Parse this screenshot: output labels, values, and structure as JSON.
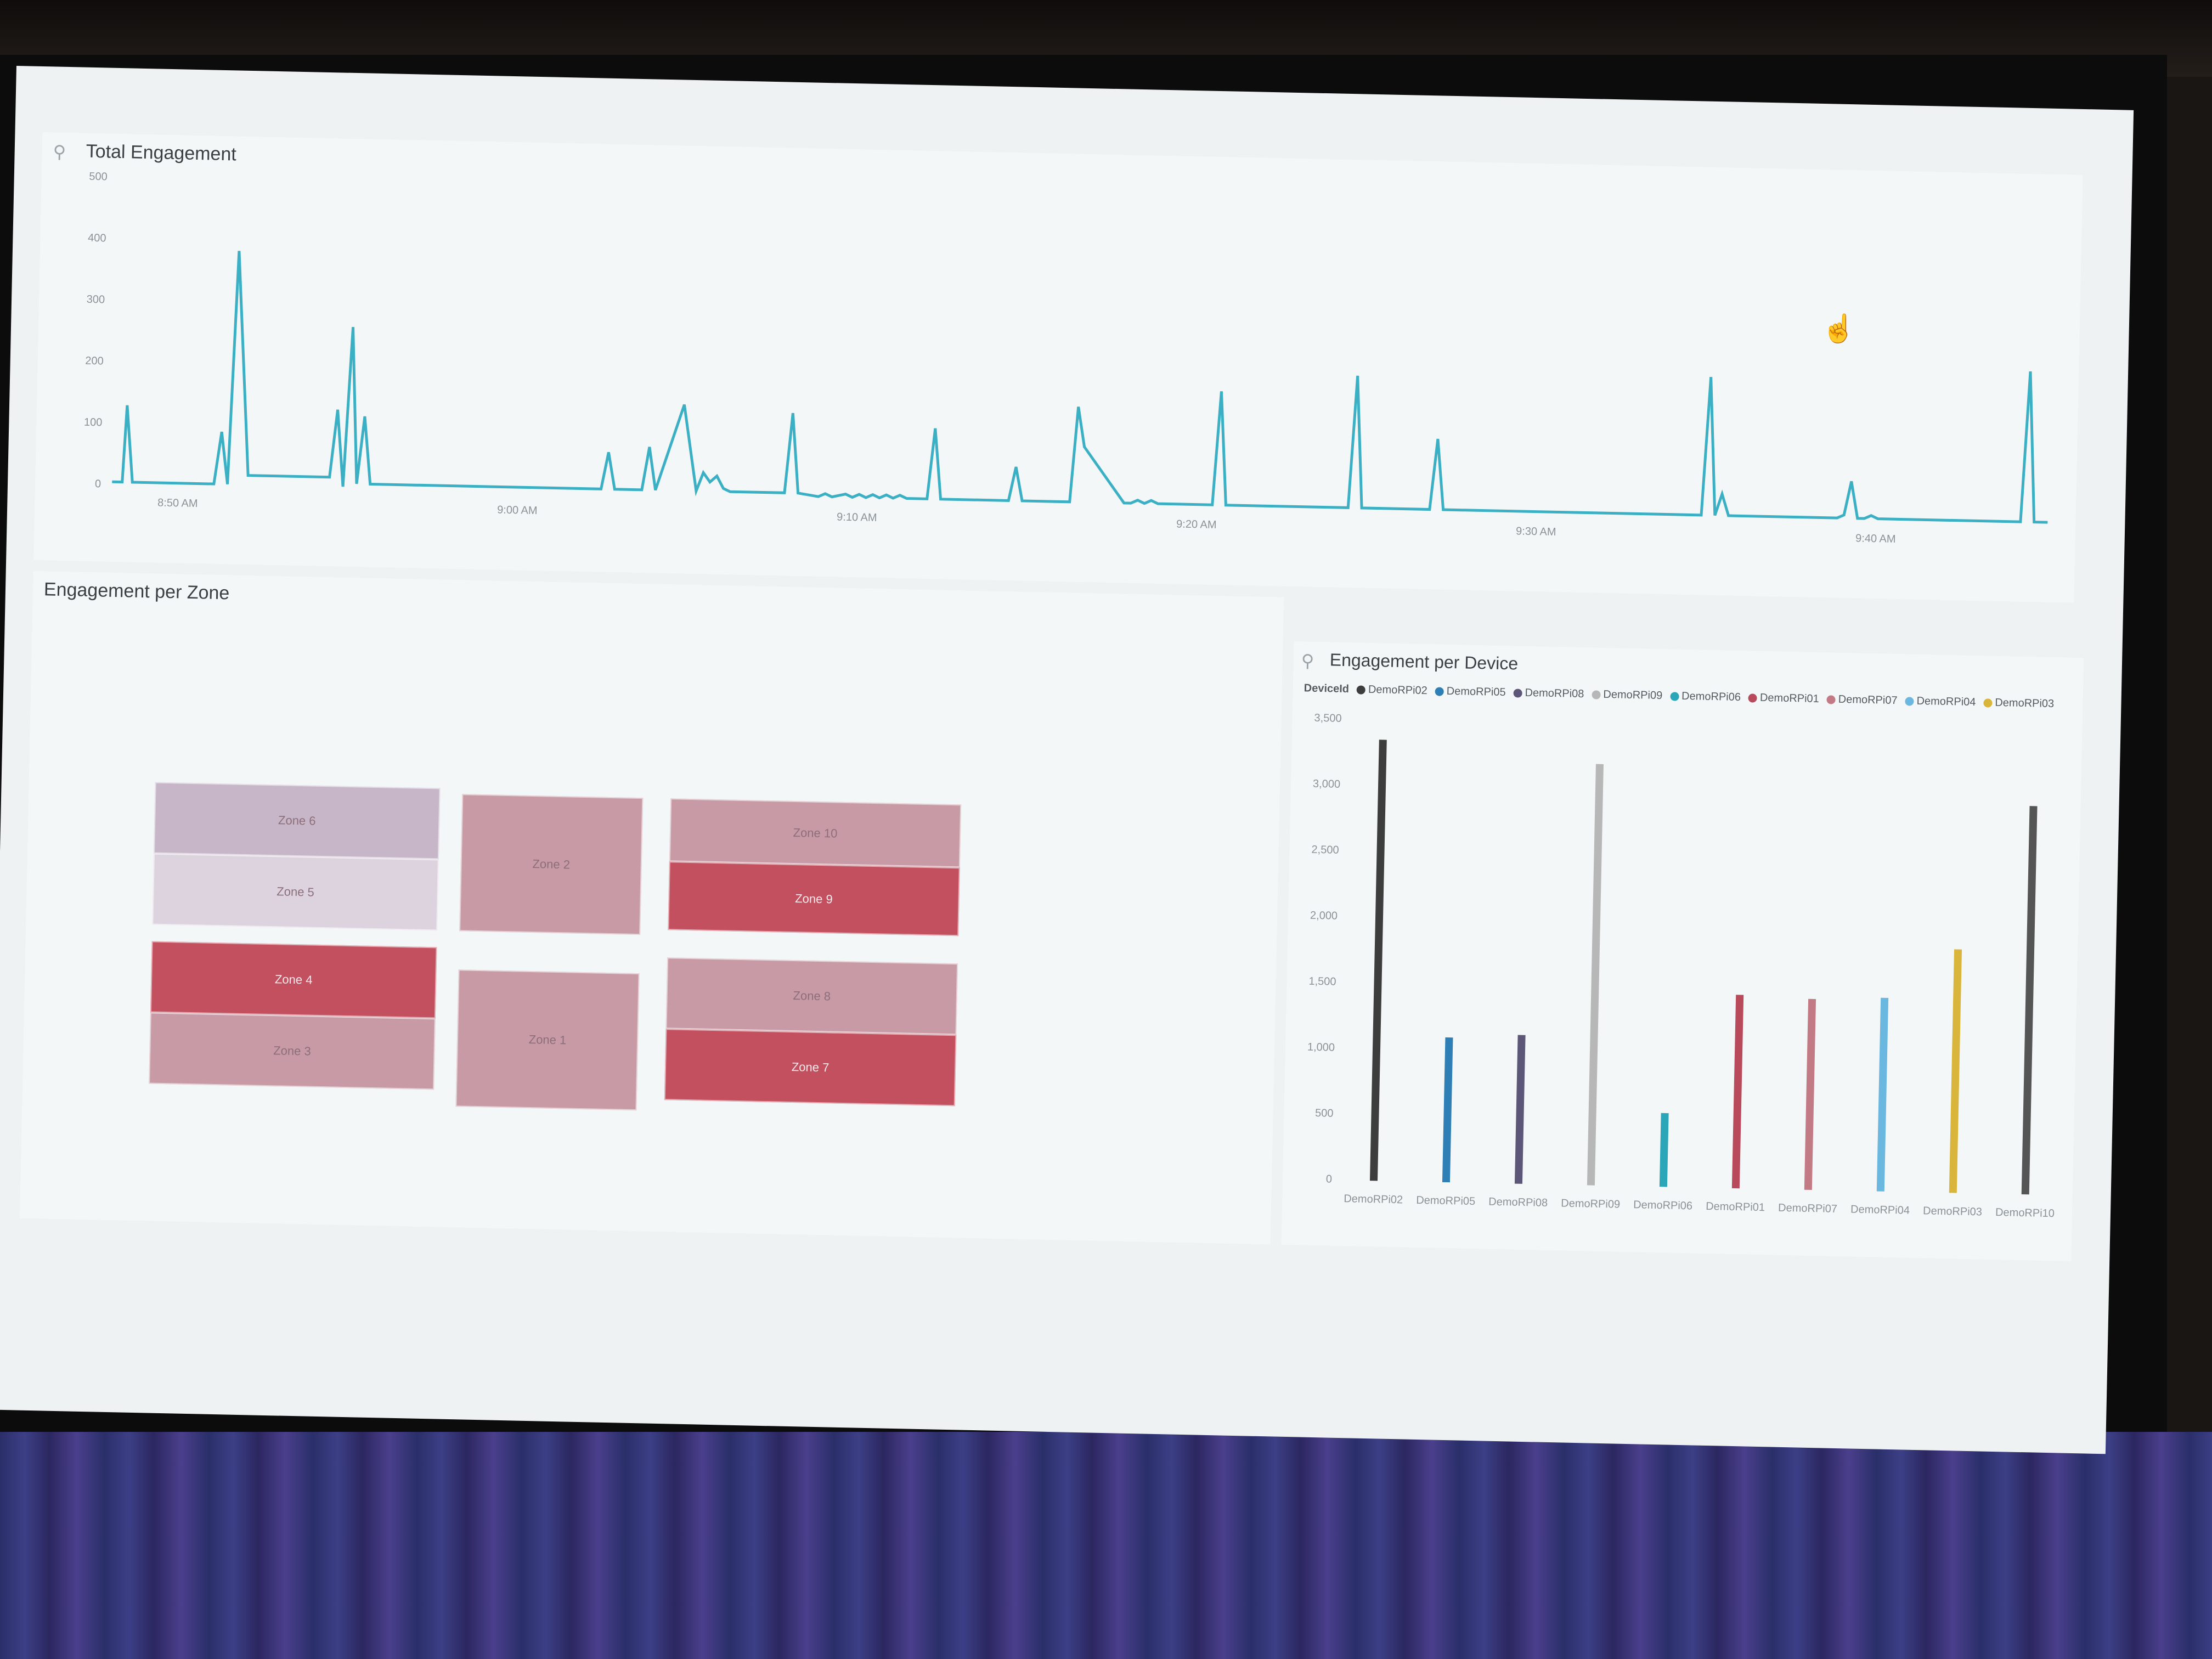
{
  "panels": {
    "total_engagement": {
      "title": "Total Engagement"
    },
    "zones": {
      "title": "Engagement per Zone"
    },
    "devices": {
      "title": "Engagement per Device"
    }
  },
  "icons": {
    "pin": "pin-icon",
    "cursor": "hand-cursor-icon"
  },
  "colors": {
    "line": "#3bb0c4",
    "zone_light": "#c9b9cc",
    "zone_mid": "#c38a97",
    "zone_dark": "#c14a5e"
  },
  "zone_tiles": [
    {
      "label": "Zone 6",
      "shade": "light"
    },
    {
      "label": "Zone 5",
      "shade": "lighter"
    },
    {
      "label": "Zone 2",
      "shade": "mid"
    },
    {
      "label": "Zone 10",
      "shade": "mid"
    },
    {
      "label": "Zone 9",
      "shade": "dark"
    },
    {
      "label": "Zone 4",
      "shade": "dark"
    },
    {
      "label": "Zone 3",
      "shade": "mid"
    },
    {
      "label": "Zone 1",
      "shade": "mid"
    },
    {
      "label": "Zone 8",
      "shade": "mid"
    },
    {
      "label": "Zone 7",
      "shade": "dark"
    }
  ],
  "chart_data": [
    {
      "type": "line",
      "title": "Total Engagement",
      "ylim": [
        0,
        500
      ],
      "yticks": [
        "500",
        "400",
        "300",
        "200",
        "100",
        "0"
      ],
      "xticks": [
        "8:50 AM",
        "9:00 AM",
        "9:10 AM",
        "9:20 AM",
        "9:30 AM",
        "9:40 AM"
      ],
      "x_minutes": [
        0,
        0.3,
        0.4,
        0.6,
        3.0,
        3.2,
        3.4,
        3.6,
        4.0,
        4.2,
        4.4,
        6.4,
        6.6,
        6.8,
        7.0,
        7.2,
        7.4,
        7.6,
        14.4,
        14.6,
        14.8,
        15.6,
        15.8,
        16.0,
        16.8,
        17.2,
        17.4,
        17.6,
        17.8,
        18.0,
        18.2,
        19.8,
        20.0,
        20.2,
        20.8,
        21.0,
        21.2,
        21.6,
        21.8,
        22.0,
        22.2,
        22.4,
        22.6,
        22.8,
        23.0,
        23.2,
        23.4,
        24.0,
        24.2,
        24.4,
        26.4,
        26.6,
        26.8,
        28.2,
        28.4,
        28.6,
        29.8,
        30.0,
        30.2,
        30.4,
        30.6,
        30.8,
        31.0,
        31.2,
        31.4,
        32.4,
        32.6,
        32.8,
        36.4,
        36.6,
        36.8,
        38.8,
        39.0,
        39.2,
        40.8,
        41.0,
        41.2,
        42.8,
        43.0,
        43.2,
        43.4,
        43.6,
        46.8,
        47.0,
        47.2,
        47.4,
        47.6,
        47.8,
        50.8,
        51.0,
        51.2,
        51.4,
        51.6,
        51.8,
        52.0,
        56.0,
        56.2,
        56.4,
        56.6,
        56.8,
        57.0
      ],
      "values": [
        5,
        5,
        130,
        5,
        5,
        90,
        5,
        385,
        20,
        20,
        20,
        20,
        130,
        5,
        265,
        10,
        120,
        10,
        10,
        70,
        10,
        10,
        80,
        10,
        150,
        10,
        40,
        25,
        35,
        15,
        10,
        10,
        140,
        10,
        5,
        10,
        5,
        10,
        5,
        10,
        5,
        10,
        5,
        10,
        5,
        10,
        5,
        5,
        120,
        5,
        5,
        60,
        5,
        5,
        160,
        95,
        5,
        5,
        10,
        5,
        10,
        5,
        5,
        5,
        5,
        5,
        190,
        5,
        5,
        220,
        5,
        5,
        120,
        5,
        5,
        5,
        5,
        5,
        5,
        5,
        5,
        5,
        5,
        230,
        5,
        40,
        5,
        5,
        5,
        10,
        65,
        5,
        5,
        10,
        5,
        5,
        5,
        250,
        5,
        5,
        5
      ]
    },
    {
      "type": "bar",
      "title": "Engagement per Device",
      "legend_title": "DeviceId",
      "legend_position": "top",
      "legend": [
        {
          "name": "DemoRPi02",
          "color": "#3d3d3d"
        },
        {
          "name": "DemoRPi05",
          "color": "#2d7fb5"
        },
        {
          "name": "DemoRPi08",
          "color": "#5c5678"
        },
        {
          "name": "DemoRPi09",
          "color": "#b7b7b7"
        },
        {
          "name": "DemoRPi06",
          "color": "#2aa6b8"
        },
        {
          "name": "DemoRPi01",
          "color": "#b94a5c"
        },
        {
          "name": "DemoRPi07",
          "color": "#c27a84"
        },
        {
          "name": "DemoRPi04",
          "color": "#6ab7e0"
        },
        {
          "name": "DemoRPi03",
          "color": "#d9b53b"
        }
      ],
      "categories": [
        "DemoRPi02",
        "DemoRPi05",
        "DemoRPi08",
        "DemoRPi09",
        "DemoRPi06",
        "DemoRPi01",
        "DemoRPi07",
        "DemoRPi04",
        "DemoRPi03",
        "DemoRPi10"
      ],
      "values": [
        3350,
        1100,
        1130,
        3200,
        560,
        1470,
        1450,
        1470,
        1850,
        2950
      ],
      "bar_colors": [
        "#3d3d3d",
        "#2d7fb5",
        "#5c5678",
        "#b7b7b7",
        "#2aa6b8",
        "#b94a5c",
        "#c27a84",
        "#6ab7e0",
        "#d9b53b",
        "#555555"
      ],
      "ylim": [
        0,
        3500
      ],
      "yticks": [
        "3,500",
        "3,000",
        "2,500",
        "2,000",
        "1,500",
        "1,000",
        "500",
        "0"
      ]
    }
  ]
}
